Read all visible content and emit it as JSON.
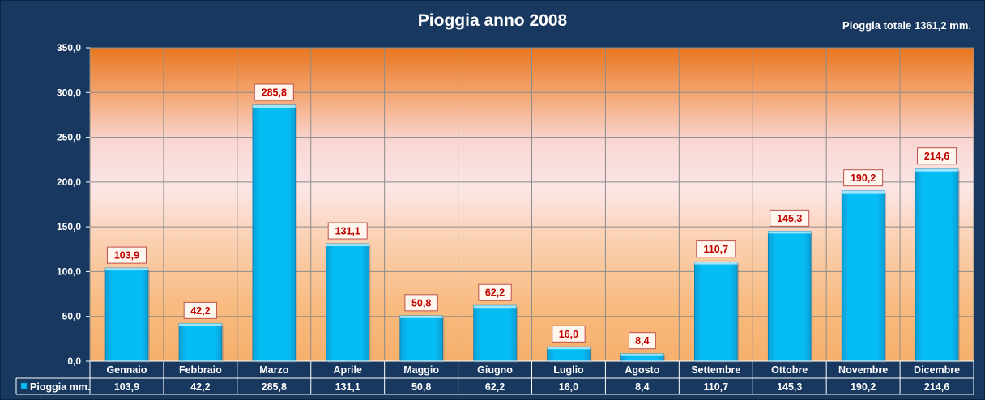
{
  "chart_data": {
    "type": "bar",
    "title": "Pioggia anno 2008",
    "subtitle": "Pioggia totale 1361,2 mm.",
    "categories": [
      "Gennaio",
      "Febbraio",
      "Marzo",
      "Aprile",
      "Maggio",
      "Giugno",
      "Luglio",
      "Agosto",
      "Settembre",
      "Ottobre",
      "Novembre",
      "Dicembre"
    ],
    "series": [
      {
        "name": "Pioggia mm.",
        "values": [
          103.9,
          42.2,
          285.8,
          131.1,
          50.8,
          62.2,
          16.0,
          8.4,
          110.7,
          145.3,
          190.2,
          214.6
        ]
      }
    ],
    "data_labels": [
      "103,9",
      "42,2",
      "285,8",
      "131,1",
      "50,8",
      "62,2",
      "16,0",
      "8,4",
      "110,7",
      "145,3",
      "190,2",
      "214,6"
    ],
    "ylim": [
      0,
      350
    ],
    "yticks": [
      0,
      50,
      100,
      150,
      200,
      250,
      300,
      350
    ],
    "ytick_labels": [
      "0,0",
      "50,0",
      "100,0",
      "150,0",
      "200,0",
      "250,0",
      "300,0",
      "350,0"
    ],
    "grid": true,
    "legend": "bottom-left data table",
    "colors": {
      "bar": "#00b4f0",
      "label_text": "#c00000",
      "background": "#17375e"
    }
  }
}
